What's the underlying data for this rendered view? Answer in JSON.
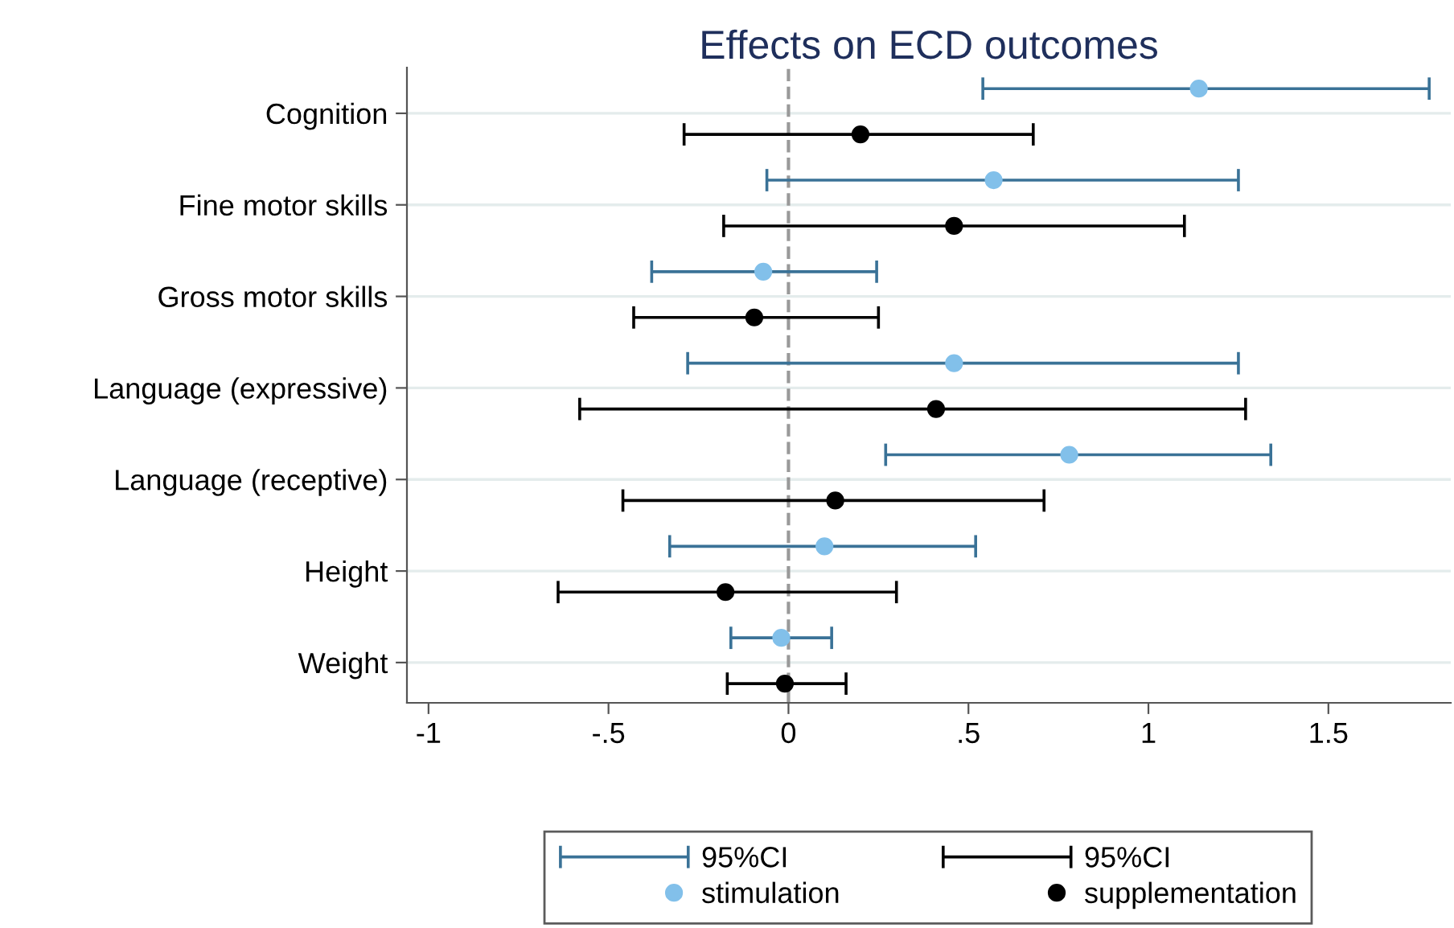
{
  "chart_data": {
    "type": "scatter",
    "orientation": "horizontal",
    "title": "Effects on ECD outcomes",
    "categories": [
      "Cognition",
      "Fine motor skills",
      "Gross motor skills",
      "Language (expressive)",
      "Language (receptive)",
      "Height",
      "Weight"
    ],
    "series": [
      {
        "name": "stimulation",
        "color": "#82c0ea",
        "values": [
          1.14,
          0.57,
          -0.07,
          0.46,
          0.78,
          0.1,
          -0.02
        ],
        "errors": [
          [
            0.54,
            1.78
          ],
          [
            -0.06,
            1.25
          ],
          [
            -0.38,
            0.245
          ],
          [
            -0.28,
            1.25
          ],
          [
            0.27,
            1.34
          ],
          [
            -0.33,
            0.52
          ],
          [
            -0.16,
            0.12
          ]
        ]
      },
      {
        "name": "supplementation",
        "color": "#000000",
        "values": [
          0.2,
          0.46,
          -0.095,
          0.41,
          0.13,
          -0.175,
          -0.01
        ],
        "errors": [
          [
            -0.29,
            0.68
          ],
          [
            -0.18,
            1.1
          ],
          [
            -0.43,
            0.25
          ],
          [
            -0.58,
            1.27
          ],
          [
            -0.46,
            0.71
          ],
          [
            -0.64,
            0.3
          ],
          [
            -0.17,
            0.16
          ]
        ]
      }
    ],
    "annotations": [
      "95%CI",
      "95%CI"
    ],
    "xlim": [
      -1.06,
      1.84
    ],
    "xticks": [
      -1,
      {
        "value": -0.5,
        "label": "-.5"
      },
      0,
      {
        "value": 0.5,
        "label": ".5"
      },
      1,
      1.5
    ],
    "ref_lines": [
      {
        "axis": "x",
        "value": 0,
        "color": "#999999",
        "line_style": "dashed"
      }
    ],
    "grid": "y",
    "marker": "circle",
    "legend": "bottom"
  }
}
